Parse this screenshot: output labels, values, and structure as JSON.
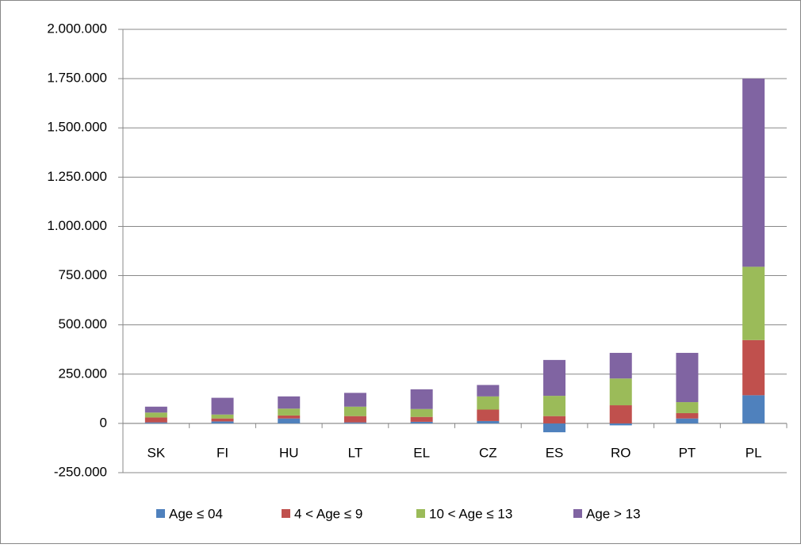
{
  "chart_data": {
    "type": "stacked_bar",
    "categories": [
      "SK",
      "FI",
      "HU",
      "LT",
      "EL",
      "CZ",
      "ES",
      "RO",
      "PT",
      "PL"
    ],
    "series": [
      {
        "name": "Age ≤ 04",
        "color": "#4f81bd",
        "values": [
          5000,
          10000,
          25000,
          5000,
          8000,
          12000,
          -45000,
          -10000,
          25000,
          143000
        ]
      },
      {
        "name": "4 < Age ≤ 9",
        "color": "#c0504d",
        "values": [
          25000,
          15000,
          15000,
          32000,
          25000,
          58000,
          37000,
          92000,
          27000,
          280000
        ]
      },
      {
        "name": "10 < Age ≤ 13",
        "color": "#9bbb59",
        "values": [
          25000,
          20000,
          35000,
          48000,
          40000,
          67000,
          103000,
          136000,
          56000,
          372000
        ]
      },
      {
        "name": "Age > 13",
        "color": "#8064a2",
        "values": [
          30000,
          85000,
          62000,
          70000,
          100000,
          58000,
          182000,
          130000,
          250000,
          955000
        ]
      }
    ],
    "ylim": [
      -250000,
      2000000
    ],
    "yticks": [
      {
        "value": -250000,
        "label": "-250.000"
      },
      0,
      {
        "value": 250000,
        "label": "250.000"
      },
      {
        "value": 500000,
        "label": "500.000"
      },
      {
        "value": 750000,
        "label": "750.000"
      },
      {
        "value": 1000000,
        "label": "1.000.000"
      },
      {
        "value": 1250000,
        "label": "1.250.000"
      },
      {
        "value": 1500000,
        "label": "1.500.000"
      },
      {
        "value": 1750000,
        "label": "1.750.000"
      },
      {
        "value": 2000000,
        "label": "2.000.000"
      }
    ],
    "grid": true,
    "legend": "bottom"
  }
}
